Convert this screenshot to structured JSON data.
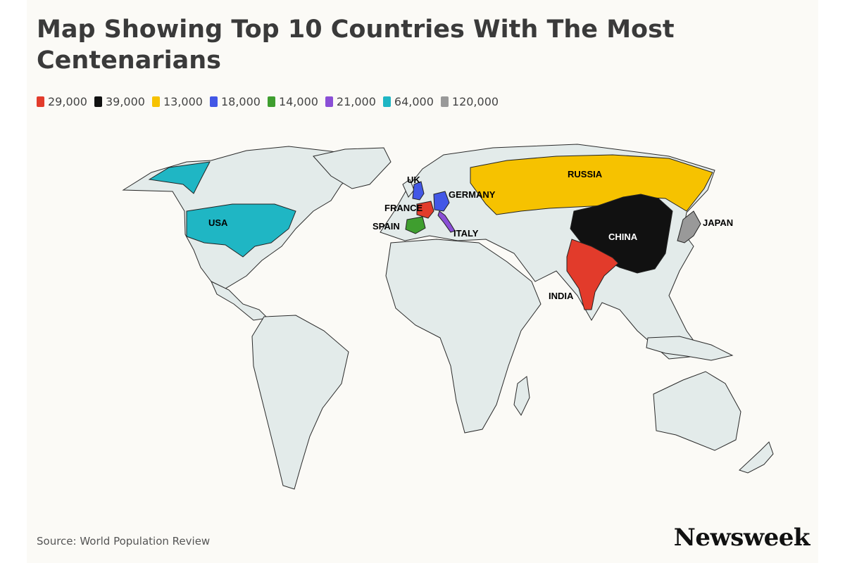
{
  "title": "Map Showing Top 10 Countries With The Most Centenarians",
  "legend": [
    {
      "label": "29,000",
      "color": "#e23b2b"
    },
    {
      "label": "39,000",
      "color": "#111111"
    },
    {
      "label": "13,000",
      "color": "#f6c200"
    },
    {
      "label": "18,000",
      "color": "#4257e6"
    },
    {
      "label": "14,000",
      "color": "#3f9e2f"
    },
    {
      "label": "21,000",
      "color": "#8a4fd6"
    },
    {
      "label": "64,000",
      "color": "#1fb6c4"
    },
    {
      "label": "120,000",
      "color": "#999999"
    }
  ],
  "countries": {
    "usa": {
      "label": "USA",
      "value": "64,000",
      "color": "#1fb6c4"
    },
    "uk": {
      "label": "UK",
      "value": "18,000",
      "color": "#4257e6"
    },
    "germany": {
      "label": "GERMANY",
      "value": "18,000",
      "color": "#4257e6"
    },
    "france": {
      "label": "FRANCE",
      "value": "29,000",
      "color": "#e23b2b"
    },
    "spain": {
      "label": "SPAIN",
      "value": "14,000",
      "color": "#3f9e2f"
    },
    "italy": {
      "label": "ITALY",
      "value": "21,000",
      "color": "#8a4fd6"
    },
    "russia": {
      "label": "RUSSIA",
      "value": "13,000",
      "color": "#f6c200"
    },
    "china": {
      "label": "CHINA",
      "value": "39,000",
      "color": "#111111"
    },
    "india": {
      "label": "INDIA",
      "value": "29,000",
      "color": "#e23b2b"
    },
    "japan": {
      "label": "JAPAN",
      "value": "120,000",
      "color": "#999999"
    }
  },
  "source": "Source: World Population Review",
  "brand": "Newsweek"
}
